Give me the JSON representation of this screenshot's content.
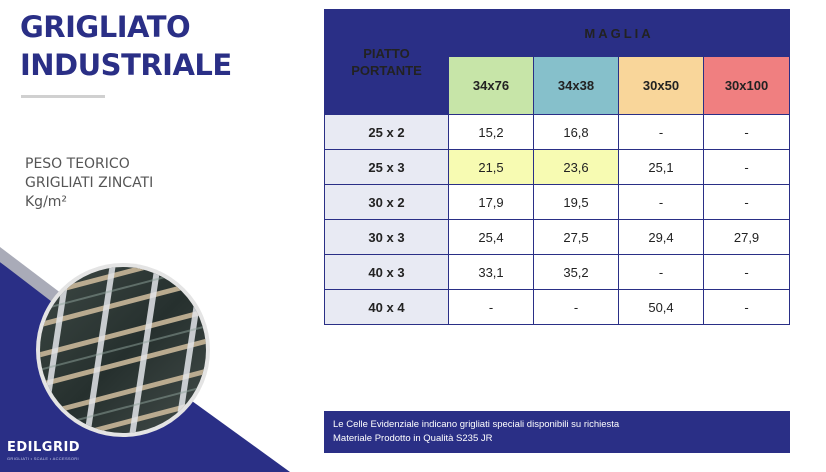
{
  "title": {
    "line1": "GRIGLIATO",
    "line2": "INDUSTRIALE"
  },
  "subtitle": {
    "line1": "PESO TEORICO",
    "line2": "GRIGLIATI ZINCATI",
    "line3": "Kg/m²"
  },
  "brand": {
    "name": "EDILGRID",
    "tagline": "GRIGLIATI • SCALE • ACCESSORI"
  },
  "colors": {
    "navy": "#2a2f86",
    "highlight": "#f7fbb2",
    "mesh_34x76": "#c7e5a8",
    "mesh_34x38": "#86c0cb",
    "mesh_30x50": "#f9d69a",
    "mesh_30x100": "#f07f80"
  },
  "table": {
    "corner_label_1": "PIATTO",
    "corner_label_2": "PORTANTE",
    "group_label": "MAGLIA",
    "columns": [
      "34x76",
      "34x38",
      "30x50",
      "30x100"
    ],
    "rows": [
      {
        "label": "25 x 2",
        "values": [
          "15,2",
          "16,8",
          "-",
          "-"
        ]
      },
      {
        "label": "25 x 3",
        "values": [
          "21,5",
          "23,6",
          "25,1",
          "-"
        ]
      },
      {
        "label": "30 x 2",
        "values": [
          "17,9",
          "19,5",
          "-",
          "-"
        ]
      },
      {
        "label": "30 x 3",
        "values": [
          "25,4",
          "27,5",
          "29,4",
          "27,9"
        ]
      },
      {
        "label": "40 x 3",
        "values": [
          "33,1",
          "35,2",
          "-",
          "-"
        ]
      },
      {
        "label": "40 x 4",
        "values": [
          "-",
          "-",
          "50,4",
          "-"
        ]
      }
    ]
  },
  "notes": {
    "line1": "Le Celle Evidenziale indicano grigliati speciali disponibili su richiesta",
    "line2": "Materiale Prodotto in Qualità S235 JR"
  }
}
